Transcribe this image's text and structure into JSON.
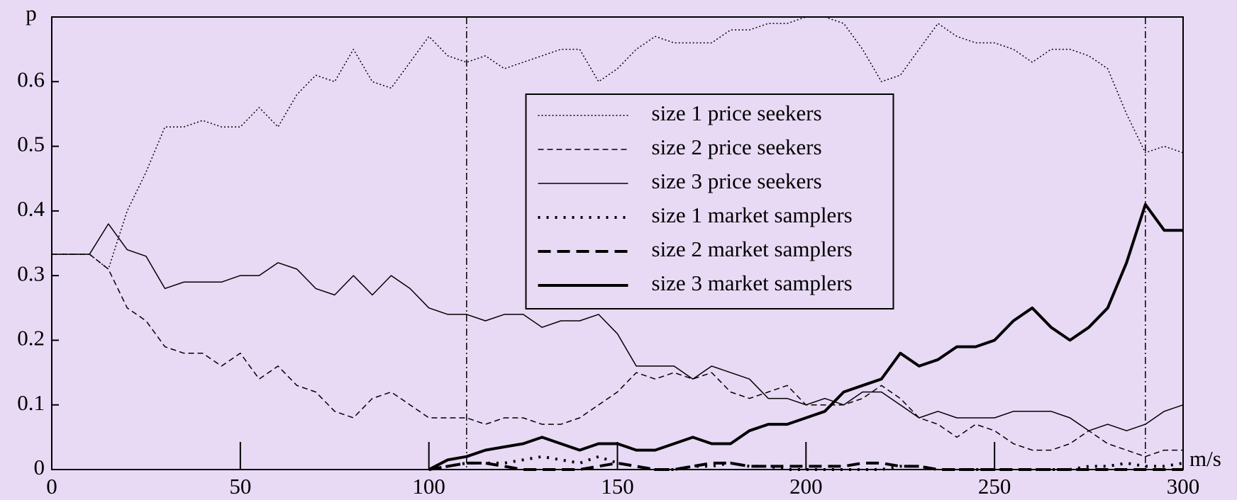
{
  "chart_data": {
    "type": "line",
    "ylabel": "p",
    "xlabel": "m/s",
    "xlim": [
      0,
      300
    ],
    "ylim": [
      0,
      0.7
    ],
    "xticks": [
      0,
      50,
      100,
      150,
      200,
      250,
      300
    ],
    "yticks": [
      0,
      0.1,
      0.2,
      0.3,
      0.4,
      0.5,
      0.6
    ],
    "vlines": [
      110,
      290
    ],
    "legend": "center",
    "x": [
      0,
      5,
      10,
      15,
      20,
      25,
      30,
      35,
      40,
      45,
      50,
      55,
      60,
      65,
      70,
      75,
      80,
      85,
      90,
      95,
      100,
      105,
      110,
      115,
      120,
      125,
      130,
      135,
      140,
      145,
      150,
      155,
      160,
      165,
      170,
      175,
      180,
      185,
      190,
      195,
      200,
      205,
      210,
      215,
      220,
      225,
      230,
      235,
      240,
      245,
      250,
      255,
      260,
      265,
      270,
      275,
      280,
      285,
      290,
      295,
      300
    ],
    "series": [
      {
        "name": "size 1 price seekers",
        "color": "#000000",
        "style": "dotted",
        "width": "thin",
        "values": [
          0.333,
          0.333,
          0.333,
          0.31,
          0.4,
          0.46,
          0.53,
          0.53,
          0.54,
          0.53,
          0.53,
          0.56,
          0.53,
          0.58,
          0.61,
          0.6,
          0.65,
          0.6,
          0.59,
          0.63,
          0.67,
          0.64,
          0.63,
          0.64,
          0.62,
          0.63,
          0.64,
          0.65,
          0.65,
          0.6,
          0.62,
          0.65,
          0.67,
          0.66,
          0.66,
          0.66,
          0.68,
          0.68,
          0.69,
          0.69,
          0.7,
          0.7,
          0.69,
          0.65,
          0.6,
          0.61,
          0.65,
          0.69,
          0.67,
          0.66,
          0.66,
          0.65,
          0.63,
          0.65,
          0.65,
          0.64,
          0.62,
          0.55,
          0.49,
          0.5,
          0.49
        ]
      },
      {
        "name": "size 2 price seekers",
        "color": "#000000",
        "style": "dashed",
        "width": "thin",
        "values": [
          0.333,
          0.333,
          0.333,
          0.31,
          0.25,
          0.23,
          0.19,
          0.18,
          0.18,
          0.16,
          0.18,
          0.14,
          0.16,
          0.13,
          0.12,
          0.09,
          0.08,
          0.11,
          0.12,
          0.1,
          0.08,
          0.08,
          0.08,
          0.07,
          0.08,
          0.08,
          0.07,
          0.07,
          0.08,
          0.1,
          0.12,
          0.15,
          0.14,
          0.15,
          0.14,
          0.15,
          0.12,
          0.11,
          0.12,
          0.13,
          0.1,
          0.1,
          0.1,
          0.11,
          0.13,
          0.11,
          0.08,
          0.07,
          0.05,
          0.07,
          0.06,
          0.04,
          0.03,
          0.03,
          0.04,
          0.06,
          0.04,
          0.03,
          0.02,
          0.03,
          0.03
        ]
      },
      {
        "name": "size 3 price seekers",
        "color": "#000000",
        "style": "solid",
        "width": "thin",
        "values": [
          0.333,
          0.333,
          0.333,
          0.38,
          0.34,
          0.33,
          0.28,
          0.29,
          0.29,
          0.29,
          0.3,
          0.3,
          0.32,
          0.31,
          0.28,
          0.27,
          0.3,
          0.27,
          0.3,
          0.28,
          0.25,
          0.24,
          0.24,
          0.23,
          0.24,
          0.24,
          0.22,
          0.23,
          0.23,
          0.24,
          0.21,
          0.16,
          0.16,
          0.16,
          0.14,
          0.16,
          0.15,
          0.14,
          0.11,
          0.11,
          0.1,
          0.11,
          0.1,
          0.12,
          0.12,
          0.1,
          0.08,
          0.09,
          0.08,
          0.08,
          0.08,
          0.09,
          0.09,
          0.09,
          0.08,
          0.06,
          0.07,
          0.06,
          0.07,
          0.09,
          0.1
        ]
      },
      {
        "name": "size 1 market samplers",
        "color": "#000000",
        "style": "dotted",
        "width": "thick",
        "values": [
          null,
          null,
          null,
          null,
          null,
          null,
          null,
          null,
          null,
          null,
          null,
          null,
          null,
          null,
          null,
          null,
          null,
          null,
          null,
          null,
          0,
          0.005,
          0.01,
          0.01,
          0.01,
          0.015,
          0.02,
          0.015,
          0.01,
          0.02,
          0.01,
          0.005,
          0,
          0,
          0.005,
          0.005,
          0.01,
          0.005,
          0.005,
          0,
          0,
          0,
          0,
          0,
          0,
          0.005,
          0.005,
          0,
          0,
          0,
          0,
          0,
          0,
          0,
          0,
          0.005,
          0.005,
          0.01,
          0.005,
          0.005,
          0.01
        ]
      },
      {
        "name": "size 2 market samplers",
        "color": "#000000",
        "style": "dashed",
        "width": "thick",
        "values": [
          null,
          null,
          null,
          null,
          null,
          null,
          null,
          null,
          null,
          null,
          null,
          null,
          null,
          null,
          null,
          null,
          null,
          null,
          null,
          null,
          0,
          0.005,
          0.01,
          0.01,
          0.005,
          0,
          0,
          0,
          0,
          0.005,
          0.01,
          0.005,
          0,
          0,
          0.005,
          0.01,
          0.01,
          0.005,
          0.005,
          0.005,
          0.005,
          0.005,
          0.005,
          0.01,
          0.01,
          0.005,
          0.005,
          0,
          0,
          0,
          0,
          0,
          0,
          0,
          0,
          0,
          0,
          0,
          0,
          0,
          0
        ]
      },
      {
        "name": "size 3 market samplers",
        "color": "#000000",
        "style": "solid",
        "width": "thick",
        "values": [
          null,
          null,
          null,
          null,
          null,
          null,
          null,
          null,
          null,
          null,
          null,
          null,
          null,
          null,
          null,
          null,
          null,
          null,
          null,
          null,
          0,
          0.015,
          0.02,
          0.03,
          0.035,
          0.04,
          0.05,
          0.04,
          0.03,
          0.04,
          0.04,
          0.03,
          0.03,
          0.04,
          0.05,
          0.04,
          0.04,
          0.06,
          0.07,
          0.07,
          0.08,
          0.09,
          0.12,
          0.13,
          0.14,
          0.18,
          0.16,
          0.17,
          0.19,
          0.19,
          0.2,
          0.23,
          0.25,
          0.22,
          0.2,
          0.22,
          0.25,
          0.32,
          0.41,
          0.37,
          0.37
        ]
      }
    ]
  }
}
